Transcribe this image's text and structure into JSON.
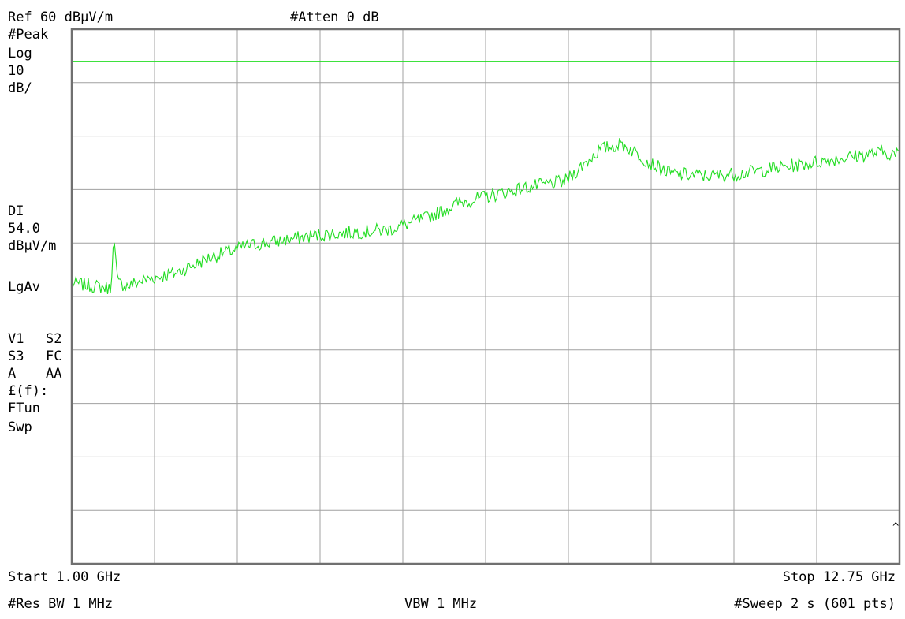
{
  "header": {
    "ref_level": "Ref 60 dBμV/m",
    "attenuation": "#Atten 0 dB"
  },
  "side_panel": {
    "detector": "#Peak",
    "scale_type": "Log",
    "scale_value": "10",
    "scale_unit": "dB/",
    "display_line_label": "DI",
    "display_line_value": "54.0",
    "display_line_unit": "dBμV/m",
    "average_mode": "LgAv",
    "row1_left": "V1",
    "row1_right": "S2",
    "row2_left": "S3",
    "row2_right": "FC",
    "row3_left": "A",
    "row3_right": "AA",
    "func_label": "£(f):",
    "ftun": "FTun",
    "swp": "Swp"
  },
  "footer": {
    "start": "Start 1.00 GHz",
    "stop": "Stop 12.75 GHz",
    "res_bw": "#Res BW 1 MHz",
    "vbw": "VBW 1 MHz",
    "sweep": "#Sweep 2 s (601 pts)"
  },
  "colors": {
    "trace": "#22dd22",
    "display_line": "#22dd22",
    "grid": "#a0a0a0",
    "border": "#707070"
  },
  "chart_data": {
    "type": "line",
    "x_unit": "GHz",
    "y_unit": "dBμV/m",
    "xlim": [
      1.0,
      12.75
    ],
    "ylim": [
      -40,
      60
    ],
    "grid": true,
    "grid_divisions": {
      "x": 10,
      "y": 10
    },
    "display_line": 54.0,
    "series": [
      {
        "x": [
          1.0,
          1.3,
          1.55,
          1.6,
          1.65,
          1.8,
          2.0,
          2.5,
          3.0,
          3.5,
          4.0,
          4.5,
          5.0,
          5.5,
          6.0,
          6.5,
          7.0,
          7.5,
          8.0,
          8.5,
          8.8,
          9.0,
          9.2,
          9.5,
          10.0,
          10.5,
          11.0,
          11.5,
          12.0,
          12.5,
          12.75
        ],
        "y": [
          12.5,
          12.0,
          11.5,
          21.0,
          12.5,
          12.0,
          13.0,
          14.5,
          17.5,
          19.5,
          20.5,
          21.5,
          22.0,
          22.5,
          24.5,
          27.5,
          29.0,
          30.5,
          31.5,
          37.5,
          38.5,
          37.0,
          35.0,
          33.0,
          32.5,
          33.0,
          34.0,
          35.0,
          36.0,
          37.0,
          36.5
        ]
      }
    ]
  }
}
